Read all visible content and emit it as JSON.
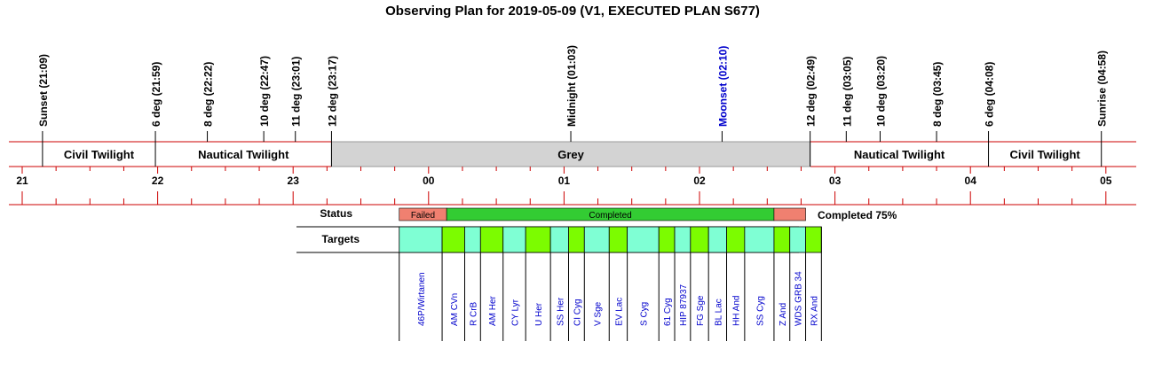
{
  "title": "Observing Plan for 2019-05-09 (V1, EXECUTED PLAN S677)",
  "colors": {
    "grid_red": "#cc0000",
    "grey_band": "#d3d3d3",
    "failed": "#f08070",
    "completed": "#33cc33",
    "target_cyan": "#7fffd4",
    "target_green": "#7cfc00",
    "target_label": "#0000cc",
    "moon_label": "#0000cc"
  },
  "time_axis": {
    "start_hour": 20.75,
    "ticks": [
      "21",
      "22",
      "23",
      "00",
      "01",
      "02",
      "03",
      "04",
      "05"
    ]
  },
  "events": [
    {
      "label": "Sunset (21:09)",
      "time": "21:09",
      "color": "black"
    },
    {
      "label": "6 deg (21:59)",
      "time": "21:59",
      "color": "black"
    },
    {
      "label": "8 deg (22:22)",
      "time": "22:22",
      "color": "black"
    },
    {
      "label": "10 deg (22:47)",
      "time": "22:47",
      "color": "black"
    },
    {
      "label": "11 deg (23:01)",
      "time": "23:01",
      "color": "black"
    },
    {
      "label": "12 deg (23:17)",
      "time": "23:17",
      "color": "black"
    },
    {
      "label": "Midnight (01:03)",
      "time": "01:03",
      "color": "black"
    },
    {
      "label": "Moonset (02:10)",
      "time": "02:10",
      "color": "blue"
    },
    {
      "label": "12 deg (02:49)",
      "time": "02:49",
      "color": "black"
    },
    {
      "label": "11 deg (03:05)",
      "time": "03:05",
      "color": "black"
    },
    {
      "label": "10 deg (03:20)",
      "time": "03:20",
      "color": "black"
    },
    {
      "label": "8 deg (03:45)",
      "time": "03:45",
      "color": "black"
    },
    {
      "label": "6 deg (04:08)",
      "time": "04:08",
      "color": "black"
    },
    {
      "label": "Sunrise (04:58)",
      "time": "04:58",
      "color": "black"
    }
  ],
  "bands": [
    {
      "label": "Civil Twilight",
      "start": "21:09",
      "end": "21:59",
      "grey": false
    },
    {
      "label": "Nautical Twilight",
      "start": "21:59",
      "end": "23:17",
      "grey": false
    },
    {
      "label": "Grey",
      "start": "23:17",
      "end": "02:49",
      "grey": true
    },
    {
      "label": "Nautical Twilight",
      "start": "02:49",
      "end": "04:08",
      "grey": false
    },
    {
      "label": "Civil Twilight",
      "start": "04:08",
      "end": "04:58",
      "grey": false
    }
  ],
  "status": {
    "row_label": "Status",
    "segments": [
      {
        "label": "Failed",
        "start": "23:47",
        "end": "00:08",
        "state": "failed"
      },
      {
        "label": "Completed",
        "start": "00:08",
        "end": "02:33",
        "state": "completed"
      },
      {
        "label": "",
        "start": "02:33",
        "end": "02:47",
        "state": "failed"
      }
    ],
    "summary": "Completed 75%"
  },
  "targets": {
    "row_label": "Targets",
    "items": [
      {
        "name": "46P/Wirtanen",
        "start": "23:47",
        "end": "00:06",
        "color": "cyan"
      },
      {
        "name": "AM CVn",
        "start": "00:06",
        "end": "00:16",
        "color": "green"
      },
      {
        "name": "R CrB",
        "start": "00:16",
        "end": "00:23",
        "color": "cyan"
      },
      {
        "name": "AM Her",
        "start": "00:23",
        "end": "00:33",
        "color": "green"
      },
      {
        "name": "CY Lyr",
        "start": "00:33",
        "end": "00:43",
        "color": "cyan"
      },
      {
        "name": "U Her",
        "start": "00:43",
        "end": "00:54",
        "color": "green"
      },
      {
        "name": "SS Her",
        "start": "00:54",
        "end": "01:02",
        "color": "cyan"
      },
      {
        "name": "CI Cyg",
        "start": "01:02",
        "end": "01:09",
        "color": "green"
      },
      {
        "name": "V Sge",
        "start": "01:09",
        "end": "01:20",
        "color": "cyan"
      },
      {
        "name": "EV Lac",
        "start": "01:20",
        "end": "01:28",
        "color": "green"
      },
      {
        "name": "S Cyg",
        "start": "01:28",
        "end": "01:42",
        "color": "cyan"
      },
      {
        "name": "61 Cyg",
        "start": "01:42",
        "end": "01:49",
        "color": "green"
      },
      {
        "name": "HIP 87937",
        "start": "01:49",
        "end": "01:56",
        "color": "cyan"
      },
      {
        "name": "FG Sge",
        "start": "01:56",
        "end": "02:04",
        "color": "green"
      },
      {
        "name": "BL Lac",
        "start": "02:04",
        "end": "02:12",
        "color": "cyan"
      },
      {
        "name": "HH And",
        "start": "02:12",
        "end": "02:20",
        "color": "green"
      },
      {
        "name": "SS Cyg",
        "start": "02:20",
        "end": "02:33",
        "color": "cyan"
      },
      {
        "name": "Z And",
        "start": "02:33",
        "end": "02:40",
        "color": "green"
      },
      {
        "name": "WDS GRB 34",
        "start": "02:40",
        "end": "02:47",
        "color": "cyan"
      },
      {
        "name": "RX And",
        "start": "02:47",
        "end": "02:54",
        "color": "green"
      }
    ]
  }
}
